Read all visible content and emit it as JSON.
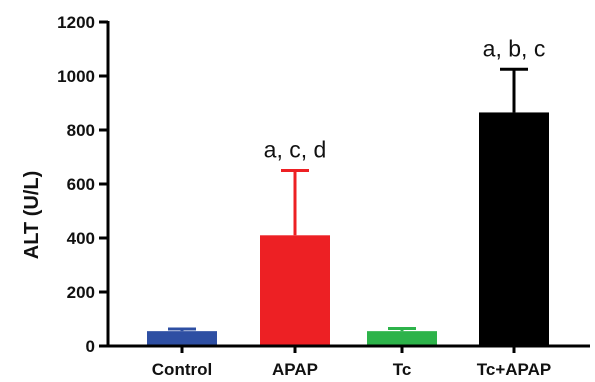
{
  "chart_data": {
    "type": "bar",
    "title": "",
    "xlabel": "",
    "ylabel": "ALT (U/L)",
    "ylim": [
      0,
      1200
    ],
    "yticks": [
      0,
      200,
      400,
      600,
      800,
      1000,
      1200
    ],
    "grid": false,
    "categories": [
      "Control",
      "APAP",
      "Tc",
      "Tc+APAP"
    ],
    "values": [
      55,
      410,
      55,
      865
    ],
    "errors": [
      8,
      240,
      10,
      160
    ],
    "colors": [
      "#2e4fa3",
      "#ed2024",
      "#2db34a",
      "#000000"
    ],
    "annotations": [
      "",
      "a, c, d",
      "",
      "a, b, c"
    ]
  }
}
